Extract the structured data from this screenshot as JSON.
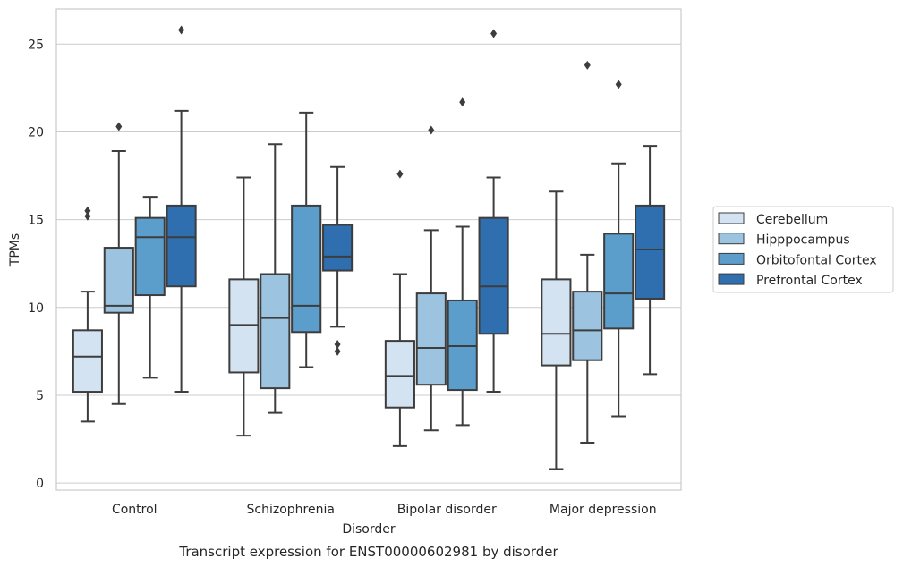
{
  "chart_data": {
    "type": "box",
    "caption": "Transcript expression for ENST00000602981 by disorder",
    "xlabel": "Disorder",
    "ylabel": "TPMs",
    "ylim": [
      -0.4,
      27
    ],
    "yticks": [
      0,
      5,
      10,
      15,
      20,
      25
    ],
    "grid": "horizontal",
    "legend_position": "right",
    "categories": [
      "Control",
      "Schizophrenia",
      "Bipolar disorder",
      "Major depression"
    ],
    "series": [
      {
        "name": "Cerebellum",
        "color": "#d4e3f2",
        "boxes": [
          {
            "whislo": 3.5,
            "q1": 5.2,
            "med": 7.2,
            "q3": 8.7,
            "whishi": 10.9,
            "fliers": [
              15.2,
              15.5
            ]
          },
          {
            "whislo": 2.7,
            "q1": 6.3,
            "med": 9.0,
            "q3": 11.6,
            "whishi": 17.4,
            "fliers": []
          },
          {
            "whislo": 2.1,
            "q1": 4.3,
            "med": 6.1,
            "q3": 8.1,
            "whishi": 11.9,
            "fliers": [
              17.6
            ]
          },
          {
            "whislo": 0.8,
            "q1": 6.7,
            "med": 8.5,
            "q3": 11.6,
            "whishi": 16.6,
            "fliers": []
          }
        ]
      },
      {
        "name": "Hipppocampus",
        "color": "#9cc4e0",
        "boxes": [
          {
            "whislo": 4.5,
            "q1": 9.7,
            "med": 10.1,
            "q3": 13.4,
            "whishi": 18.9,
            "fliers": [
              20.3
            ]
          },
          {
            "whislo": 4.0,
            "q1": 5.4,
            "med": 9.4,
            "q3": 11.9,
            "whishi": 19.3,
            "fliers": []
          },
          {
            "whislo": 3.0,
            "q1": 5.6,
            "med": 7.7,
            "q3": 10.8,
            "whishi": 14.4,
            "fliers": [
              20.1
            ]
          },
          {
            "whislo": 2.3,
            "q1": 7.0,
            "med": 8.7,
            "q3": 10.9,
            "whishi": 13.0,
            "fliers": [
              23.8
            ]
          }
        ]
      },
      {
        "name": "Orbitofontal Cortex",
        "color": "#5b9dcb",
        "boxes": [
          {
            "whislo": 6.0,
            "q1": 10.7,
            "med": 14.0,
            "q3": 15.1,
            "whishi": 16.3,
            "fliers": []
          },
          {
            "whislo": 6.6,
            "q1": 8.6,
            "med": 10.1,
            "q3": 15.8,
            "whishi": 21.1,
            "fliers": []
          },
          {
            "whislo": 3.3,
            "q1": 5.3,
            "med": 7.8,
            "q3": 10.4,
            "whishi": 14.6,
            "fliers": [
              21.7
            ]
          },
          {
            "whislo": 3.8,
            "q1": 8.8,
            "med": 10.8,
            "q3": 14.2,
            "whishi": 18.2,
            "fliers": [
              22.7
            ]
          }
        ]
      },
      {
        "name": "Prefrontal Cortex",
        "color": "#2f6eaf",
        "boxes": [
          {
            "whislo": 5.2,
            "q1": 11.2,
            "med": 14.0,
            "q3": 15.8,
            "whishi": 21.2,
            "fliers": [
              25.8
            ]
          },
          {
            "whislo": 8.9,
            "q1": 12.1,
            "med": 12.9,
            "q3": 14.7,
            "whishi": 18.0,
            "fliers": [
              7.5,
              7.9
            ]
          },
          {
            "whislo": 5.2,
            "q1": 8.5,
            "med": 11.2,
            "q3": 15.1,
            "whishi": 17.4,
            "fliers": [
              25.6
            ]
          },
          {
            "whislo": 6.2,
            "q1": 10.5,
            "med": 13.3,
            "q3": 15.8,
            "whishi": 19.2,
            "fliers": []
          }
        ]
      }
    ]
  }
}
